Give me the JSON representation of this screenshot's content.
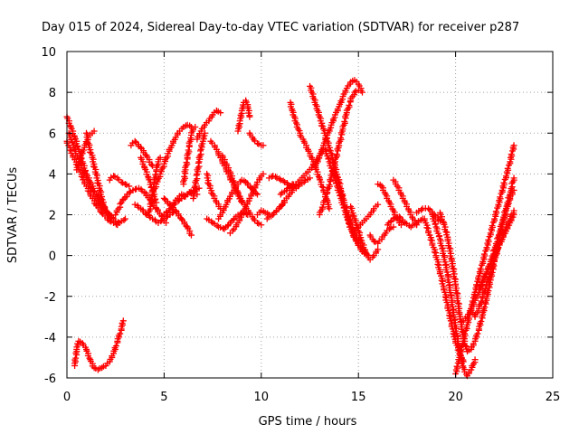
{
  "chart_data": {
    "type": "scatter",
    "title": "Day 015 of 2024, Sidereal Day-to-day VTEC variation (SDTVAR) for receiver p287",
    "xlabel": "GPS time / hours",
    "ylabel": "SDTVAR / TECUs",
    "xlim": [
      0,
      25
    ],
    "ylim": [
      -6,
      10
    ],
    "xticks": [
      "0",
      "5",
      "10",
      "15",
      "20",
      "25"
    ],
    "yticks": [
      "-6",
      "-4",
      "-2",
      "0",
      "2",
      "4",
      "6",
      "8",
      "10"
    ],
    "grid": true,
    "legend": "none",
    "marker": "plus",
    "color": "#ff0000",
    "series": [
      {
        "x": [
          0.0,
          0.2,
          0.4,
          0.6,
          0.8,
          1.0,
          1.2,
          1.5,
          1.8,
          2.1,
          2.4
        ],
        "y": [
          6.8,
          6.3,
          5.8,
          5.2,
          4.6,
          4.0,
          3.6,
          3.0,
          2.5,
          2.1,
          1.8
        ]
      },
      {
        "x": [
          0.0,
          0.3,
          0.6,
          0.9,
          1.2,
          1.5,
          1.8,
          2.2,
          2.6
        ],
        "y": [
          5.6,
          4.9,
          4.3,
          3.6,
          3.0,
          2.5,
          2.1,
          1.7,
          1.5
        ]
      },
      {
        "x": [
          0.1,
          0.4,
          0.7,
          1.0,
          1.3,
          1.6,
          1.9
        ],
        "y": [
          6.0,
          5.2,
          4.5,
          3.8,
          3.2,
          2.7,
          2.3
        ]
      },
      {
        "x": [
          0.5,
          0.7,
          0.9,
          1.1,
          1.3,
          1.4
        ],
        "y": [
          4.2,
          4.8,
          5.3,
          5.8,
          6.0,
          6.1
        ]
      },
      {
        "x": [
          1.0,
          1.1,
          1.3,
          1.5,
          1.7,
          1.9
        ],
        "y": [
          6.0,
          5.5,
          4.8,
          4.0,
          3.2,
          2.4
        ]
      },
      {
        "x": [
          1.6,
          1.8,
          2.0,
          2.2,
          2.4,
          2.7,
          3.0
        ],
        "y": [
          3.0,
          2.6,
          2.2,
          1.9,
          1.7,
          1.6,
          1.8
        ]
      },
      {
        "x": [
          2.2,
          2.4,
          2.6,
          2.8,
          3.0,
          3.2
        ],
        "y": [
          3.7,
          3.9,
          3.8,
          3.6,
          3.5,
          3.4
        ]
      },
      {
        "x": [
          2.5,
          2.8,
          3.1,
          3.4,
          3.7,
          4.0,
          4.3,
          4.6,
          4.9,
          5.1
        ],
        "y": [
          2.0,
          2.6,
          3.0,
          3.2,
          3.3,
          3.1,
          2.7,
          2.3,
          1.9,
          1.6
        ]
      },
      {
        "x": [
          3.3,
          3.5,
          3.8,
          4.1,
          4.4
        ],
        "y": [
          5.4,
          5.6,
          5.3,
          4.9,
          4.4
        ]
      },
      {
        "x": [
          3.5,
          3.8,
          4.1,
          4.4,
          4.7,
          5.0,
          5.3,
          5.6
        ],
        "y": [
          2.5,
          2.3,
          2.0,
          1.8,
          1.6,
          1.8,
          2.0,
          2.2
        ]
      },
      {
        "x": [
          3.8,
          4.0,
          4.2,
          4.4,
          4.6
        ],
        "y": [
          4.8,
          4.3,
          3.8,
          3.2,
          2.6
        ]
      },
      {
        "x": [
          4.2,
          4.3,
          4.4,
          4.5,
          4.6,
          4.7,
          4.8
        ],
        "y": [
          2.0,
          2.4,
          3.0,
          3.6,
          4.2,
          4.6,
          4.8
        ]
      },
      {
        "x": [
          4.4,
          4.6,
          4.8,
          5.0,
          5.2,
          5.4,
          5.6,
          5.8,
          6.0,
          6.2,
          6.4
        ],
        "y": [
          3.0,
          3.5,
          4.0,
          4.5,
          5.0,
          5.4,
          5.8,
          6.1,
          6.3,
          6.4,
          6.3
        ]
      },
      {
        "x": [
          5.0,
          5.3,
          5.6,
          5.9,
          6.2,
          6.4
        ],
        "y": [
          2.8,
          2.5,
          2.2,
          1.8,
          1.4,
          1.0
        ]
      },
      {
        "x": [
          5.0,
          5.3,
          5.6,
          5.9,
          6.2,
          6.5,
          6.8
        ],
        "y": [
          2.0,
          2.3,
          2.6,
          2.8,
          3.0,
          3.2,
          3.3
        ]
      },
      {
        "x": [
          5.5,
          5.7,
          5.9,
          6.1,
          6.3,
          6.5,
          6.7
        ],
        "y": [
          2.6,
          2.8,
          3.0,
          2.9,
          3.1,
          3.0,
          3.0
        ]
      },
      {
        "x": [
          6.0,
          6.1,
          6.2,
          6.3,
          6.4,
          6.5,
          6.6
        ],
        "y": [
          3.5,
          4.2,
          4.8,
          5.4,
          5.9,
          6.2,
          6.3
        ]
      },
      {
        "x": [
          6.5,
          6.6,
          6.7,
          6.8,
          6.9,
          7.0,
          7.1
        ],
        "y": [
          2.8,
          3.4,
          4.0,
          4.6,
          5.2,
          5.6,
          6.0
        ]
      },
      {
        "x": [
          6.7,
          6.9,
          7.1,
          7.3,
          7.5,
          7.7,
          7.9
        ],
        "y": [
          5.7,
          6.1,
          6.4,
          6.6,
          6.9,
          7.1,
          7.0
        ]
      },
      {
        "x": [
          7.2,
          7.3,
          7.5,
          7.7,
          7.9
        ],
        "y": [
          4.0,
          3.5,
          3.0,
          2.6,
          2.3
        ]
      },
      {
        "x": [
          7.2,
          7.5,
          7.8,
          8.1,
          8.4,
          8.7,
          9.0,
          9.3
        ],
        "y": [
          1.8,
          1.6,
          1.4,
          1.3,
          1.6,
          1.9,
          2.1,
          2.0
        ]
      },
      {
        "x": [
          7.4,
          7.6,
          7.8,
          8.0,
          8.2,
          8.4,
          8.6,
          8.8,
          9.0,
          9.2,
          9.4,
          9.6,
          9.8,
          10.0
        ],
        "y": [
          5.6,
          5.4,
          5.0,
          4.6,
          4.2,
          3.8,
          3.4,
          3.0,
          2.7,
          2.4,
          2.1,
          1.8,
          1.6,
          1.5
        ]
      },
      {
        "x": [
          7.8,
          8.0,
          8.2,
          8.4,
          8.6,
          8.8,
          9.0,
          9.2,
          9.5,
          9.8
        ],
        "y": [
          1.8,
          2.1,
          2.5,
          2.9,
          3.2,
          3.5,
          3.7,
          3.6,
          3.3,
          3.0
        ]
      },
      {
        "x": [
          8.0,
          8.2,
          8.4,
          8.6,
          8.8,
          9.0
        ],
        "y": [
          4.9,
          4.5,
          4.1,
          3.6,
          3.1,
          2.6
        ]
      },
      {
        "x": [
          8.4,
          8.6,
          8.8,
          9.0,
          9.2,
          9.4,
          9.6,
          9.8,
          10.0,
          10.1
        ],
        "y": [
          1.1,
          1.3,
          1.6,
          2.0,
          2.4,
          2.8,
          3.2,
          3.6,
          3.9,
          4.0
        ]
      },
      {
        "x": [
          8.8,
          8.9,
          9.0,
          9.1,
          9.2,
          9.3,
          9.4
        ],
        "y": [
          6.1,
          6.6,
          7.1,
          7.5,
          7.6,
          7.3,
          6.8
        ]
      },
      {
        "x": [
          9.4,
          9.6,
          9.8,
          10.0,
          10.1
        ],
        "y": [
          6.0,
          5.7,
          5.5,
          5.4,
          5.4
        ]
      },
      {
        "x": [
          9.8,
          10.0,
          10.2,
          10.4
        ],
        "y": [
          2.0,
          2.2,
          2.1,
          2.0
        ]
      },
      {
        "x": [
          10.3,
          10.6,
          10.9,
          11.2
        ],
        "y": [
          1.8,
          2.0,
          2.3,
          2.6
        ]
      },
      {
        "x": [
          10.4,
          10.6,
          10.8,
          11.0,
          11.2,
          11.5,
          11.8
        ],
        "y": [
          3.8,
          3.9,
          3.8,
          3.7,
          3.6,
          3.4,
          3.3
        ]
      },
      {
        "x": [
          11.0,
          11.2,
          11.4,
          11.6,
          11.8,
          12.0,
          12.2,
          12.4,
          12.6,
          12.8,
          13.0,
          13.2
        ],
        "y": [
          2.4,
          2.7,
          2.9,
          3.2,
          3.5,
          3.7,
          3.9,
          4.1,
          4.3,
          4.6,
          4.9,
          5.2
        ]
      },
      {
        "x": [
          11.0,
          11.3,
          11.6,
          11.9,
          12.2,
          12.5
        ],
        "y": [
          3.0,
          3.2,
          3.5,
          3.4,
          3.6,
          3.8
        ]
      },
      {
        "x": [
          11.5,
          11.6,
          11.7,
          11.8,
          11.9,
          12.0
        ],
        "y": [
          7.5,
          7.1,
          6.8,
          6.5,
          6.2,
          6.0
        ]
      },
      {
        "x": [
          12.0,
          12.2,
          12.4,
          12.6,
          12.8,
          13.0,
          13.2,
          13.4,
          13.5
        ],
        "y": [
          5.9,
          5.6,
          5.2,
          4.8,
          4.3,
          3.8,
          3.2,
          2.7,
          2.3
        ]
      },
      {
        "x": [
          12.5,
          12.6,
          12.7,
          12.8,
          12.9,
          13.0,
          13.2,
          13.4,
          13.6,
          13.8,
          14.0,
          14.2,
          14.4,
          14.6,
          14.8,
          15.0,
          15.2
        ],
        "y": [
          8.3,
          8.0,
          7.7,
          7.4,
          7.1,
          6.8,
          6.2,
          5.6,
          5.0,
          4.3,
          3.6,
          2.8,
          2.0,
          1.4,
          0.9,
          0.5,
          0.2
        ]
      },
      {
        "x": [
          12.8,
          13.0,
          13.2,
          13.4,
          13.6,
          13.8,
          14.0,
          14.2,
          14.4,
          14.6,
          14.8,
          15.0,
          15.2
        ],
        "y": [
          4.4,
          4.9,
          5.4,
          5.9,
          6.4,
          6.9,
          7.3,
          7.8,
          8.2,
          8.5,
          8.6,
          8.4,
          8.0
        ]
      },
      {
        "x": [
          13.0,
          13.2,
          13.4,
          13.6,
          13.8,
          14.0,
          14.2,
          14.4,
          14.6,
          14.8,
          15.0
        ],
        "y": [
          2.0,
          2.5,
          3.1,
          3.8,
          4.6,
          5.4,
          6.2,
          7.0,
          7.6,
          8.0,
          8.1
        ]
      },
      {
        "x": [
          13.3,
          13.5,
          13.7,
          13.9,
          14.1,
          14.3,
          14.5,
          14.7,
          14.9,
          15.1,
          15.3,
          15.5
        ],
        "y": [
          5.2,
          4.6,
          4.0,
          3.4,
          2.8,
          2.2,
          1.6,
          1.1,
          0.7,
          0.4,
          0.1,
          0.0
        ]
      },
      {
        "x": [
          13.8,
          14.0,
          14.2,
          14.4,
          14.6,
          14.8,
          15.0,
          15.2,
          15.4
        ],
        "y": [
          4.0,
          3.4,
          2.8,
          2.2,
          1.7,
          1.2,
          0.8,
          0.4,
          0.1
        ]
      },
      {
        "x": [
          14.6,
          14.8,
          15.0,
          15.2,
          15.4,
          15.6,
          15.8,
          16.0
        ],
        "y": [
          2.4,
          1.8,
          1.2,
          0.6,
          0.1,
          -0.2,
          0.0,
          0.3
        ]
      },
      {
        "x": [
          15.0,
          15.2,
          15.4,
          15.6,
          15.8,
          16.0
        ],
        "y": [
          1.4,
          1.6,
          1.8,
          2.0,
          2.3,
          2.5
        ]
      },
      {
        "x": [
          15.6,
          15.8,
          16.0,
          16.2,
          16.4,
          16.6,
          16.8
        ],
        "y": [
          1.0,
          0.7,
          0.6,
          0.8,
          1.1,
          1.3,
          1.4
        ]
      },
      {
        "x": [
          16.0,
          16.2,
          16.4,
          16.6,
          16.8,
          17.0,
          17.2
        ],
        "y": [
          3.5,
          3.4,
          3.0,
          2.6,
          2.2,
          1.8,
          1.5
        ]
      },
      {
        "x": [
          16.5,
          16.8,
          17.1,
          17.4,
          17.7,
          18.0,
          18.3
        ],
        "y": [
          1.5,
          1.8,
          1.9,
          1.6,
          1.4,
          1.6,
          1.8
        ]
      },
      {
        "x": [
          16.8,
          17.0,
          17.2,
          17.4,
          17.6,
          17.8,
          18.0
        ],
        "y": [
          3.7,
          3.4,
          3.0,
          2.6,
          2.2,
          1.8,
          1.5
        ]
      },
      {
        "x": [
          18.0,
          18.3,
          18.6,
          18.9,
          19.2
        ],
        "y": [
          2.1,
          2.3,
          2.3,
          2.0,
          1.7
        ]
      },
      {
        "x": [
          18.4,
          18.6,
          18.8,
          19.0,
          19.2,
          19.4,
          19.6,
          19.8,
          20.0,
          20.2,
          20.4
        ],
        "y": [
          1.8,
          1.2,
          0.6,
          0.0,
          -0.8,
          -1.6,
          -2.5,
          -3.4,
          -4.2,
          -4.8,
          -5.2
        ]
      },
      {
        "x": [
          18.8,
          19.0,
          19.2,
          19.4,
          19.6,
          19.8,
          20.0,
          20.2,
          20.4,
          20.6,
          20.8,
          21.0
        ],
        "y": [
          2.0,
          1.4,
          0.8,
          0.0,
          -1.0,
          -2.2,
          -3.5,
          -4.6,
          -5.5,
          -5.9,
          -5.6,
          -5.1
        ]
      },
      {
        "x": [
          19.2,
          19.4,
          19.6,
          19.8,
          20.0,
          20.2,
          20.4,
          20.6,
          20.8,
          21.0,
          21.2,
          21.4,
          21.6,
          21.8,
          22.0,
          22.2,
          22.4,
          22.6,
          22.8,
          23.0
        ],
        "y": [
          2.1,
          1.6,
          0.8,
          -0.2,
          -1.4,
          -2.8,
          -4.0,
          -4.7,
          -4.6,
          -4.2,
          -3.6,
          -2.9,
          -2.1,
          -1.2,
          -0.3,
          0.7,
          1.5,
          2.2,
          2.8,
          3.2
        ]
      },
      {
        "x": [
          20.0,
          20.2,
          20.4,
          20.6,
          20.8,
          21.0,
          21.2,
          21.4,
          21.6,
          21.8,
          22.0,
          22.2,
          22.4,
          22.6,
          22.8,
          23.0
        ],
        "y": [
          -5.8,
          -5.0,
          -4.2,
          -3.4,
          -2.6,
          -1.8,
          -1.0,
          -0.3,
          0.4,
          1.1,
          1.8,
          2.5,
          3.2,
          3.9,
          4.6,
          5.4
        ]
      },
      {
        "x": [
          20.4,
          20.6,
          20.8,
          21.0,
          21.2,
          21.4,
          21.6,
          21.8,
          22.0,
          22.2,
          22.4,
          22.6,
          22.8,
          23.0
        ],
        "y": [
          -3.2,
          -3.0,
          -2.6,
          -2.2,
          -1.8,
          -1.3,
          -0.8,
          -0.3,
          0.3,
          0.9,
          1.6,
          2.3,
          3.0,
          3.8
        ]
      },
      {
        "x": [
          20.8,
          21.0,
          21.2,
          21.4,
          21.6,
          21.8,
          22.0,
          22.2,
          22.4,
          22.6,
          22.8,
          23.0
        ],
        "y": [
          -2.6,
          -3.0,
          -2.6,
          -2.0,
          -1.4,
          -0.8,
          -0.2,
          0.4,
          0.9,
          1.4,
          1.8,
          2.2
        ]
      },
      {
        "x": [
          21.2,
          21.4,
          21.6,
          21.8,
          22.0,
          22.2,
          22.4,
          22.6,
          22.8,
          23.0
        ],
        "y": [
          -1.6,
          -1.2,
          -0.8,
          -0.4,
          0.0,
          0.4,
          0.8,
          1.2,
          1.6,
          2.0
        ]
      },
      {
        "x": [
          0.4,
          0.5,
          0.6,
          0.8,
          1.0,
          1.2,
          1.4,
          1.6,
          1.8,
          2.0,
          2.2,
          2.4,
          2.6,
          2.8,
          2.9
        ],
        "y": [
          -5.4,
          -4.6,
          -4.2,
          -4.3,
          -4.6,
          -5.1,
          -5.5,
          -5.6,
          -5.5,
          -5.4,
          -5.2,
          -4.8,
          -4.2,
          -3.6,
          -3.2
        ]
      }
    ]
  }
}
